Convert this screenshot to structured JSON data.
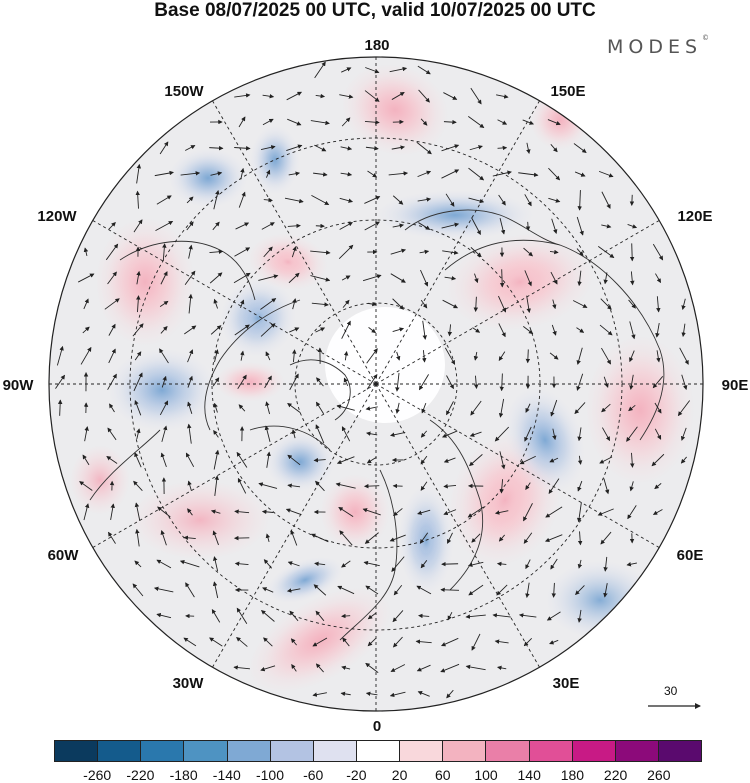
{
  "title": "Base 08/07/2025 00 UTC, valid 10/07/2025 00 UTC",
  "logo": {
    "text": "MODES",
    "mark": "©"
  },
  "longitude_labels": [
    {
      "id": "lon-180",
      "text": "180"
    },
    {
      "id": "lon-150e",
      "text": "150E"
    },
    {
      "id": "lon-120e",
      "text": "120E"
    },
    {
      "id": "lon-90e",
      "text": "90E"
    },
    {
      "id": "lon-60e",
      "text": "60E"
    },
    {
      "id": "lon-30e",
      "text": "30E"
    },
    {
      "id": "lon-0",
      "text": "0"
    },
    {
      "id": "lon-30w",
      "text": "30W"
    },
    {
      "id": "lon-60w",
      "text": "60W"
    },
    {
      "id": "lon-90w",
      "text": "90W"
    },
    {
      "id": "lon-120w",
      "text": "120W"
    },
    {
      "id": "lon-150w",
      "text": "150W"
    }
  ],
  "wind_scale": {
    "label": "30"
  },
  "colorbar": {
    "colors": [
      "#0b3a5e",
      "#145b8c",
      "#2a78ad",
      "#4e93c2",
      "#7fa9d4",
      "#b3c3e3",
      "#dfe1f0",
      "#ffffff",
      "#f9d8dc",
      "#f3b3c0",
      "#ea7fa8",
      "#e14f97",
      "#c81a85",
      "#8c0a7a",
      "#5a0a6e"
    ],
    "labels": [
      "-260",
      "-220",
      "-180",
      "-140",
      "-100",
      "-60",
      "-20",
      "20",
      "60",
      "100",
      "140",
      "180",
      "220",
      "260"
    ]
  },
  "map_colors": {
    "background_fill": "#ececee",
    "pole_fill": "#ffffff",
    "coastline": "#333333",
    "grid": "#222222"
  }
}
